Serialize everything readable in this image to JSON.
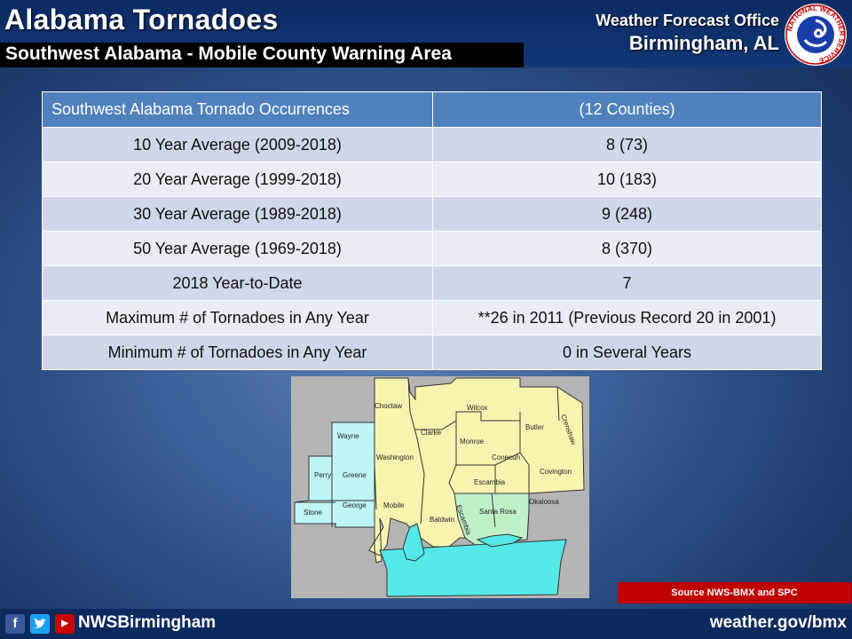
{
  "header": {
    "title": "Alabama Tornadoes",
    "subtitle": "Southwest Alabama  - Mobile County Warning Area",
    "office_line1": "Weather Forecast Office",
    "office_line2": "Birmingham, AL",
    "logo_text": "NATIONAL WEATHER SERVICE"
  },
  "table": {
    "header": [
      "Southwest Alabama Tornado Occurrences",
      "(12 Counties)"
    ],
    "rows": [
      [
        "10 Year Average (2009-2018)",
        "8  (73)"
      ],
      [
        "20 Year Average (1999-2018)",
        "10  (183)"
      ],
      [
        "30 Year Average (1989-2018)",
        "9  (248)"
      ],
      [
        "50 Year Average (1969-2018)",
        "8  (370)"
      ],
      [
        "2018 Year-to-Date",
        "7"
      ],
      [
        "Maximum # of Tornadoes in Any Year",
        "**26 in 2011   (Previous Record 20 in 2001)"
      ],
      [
        "Minimum # of Tornadoes in Any Year",
        "0 in Several Years"
      ]
    ]
  },
  "map": {
    "counties": [
      "Choctaw",
      "Wilcox",
      "Butler",
      "Crenshaw",
      "Wayne",
      "Clarke",
      "Monroe",
      "Washington",
      "Conecuh",
      "Covington",
      "Perry",
      "Greene",
      "Escambia",
      "Stone",
      "George",
      "Mobile",
      "Baldwin",
      "Santa Rosa",
      "Okaloosa",
      "Escambia"
    ],
    "colors": {
      "alabama": "#f8f4b0",
      "mississippi": "#bff5f5",
      "florida": "#bff0c8",
      "water": "#55e8e8",
      "background": "#b4b4b4"
    }
  },
  "source": "Source NWS-BMX and SPC",
  "footer": {
    "handle": "NWSBirmingham",
    "url": "weather.gov/bmx",
    "icons": [
      "facebook-icon",
      "twitter-icon",
      "youtube-icon"
    ]
  }
}
